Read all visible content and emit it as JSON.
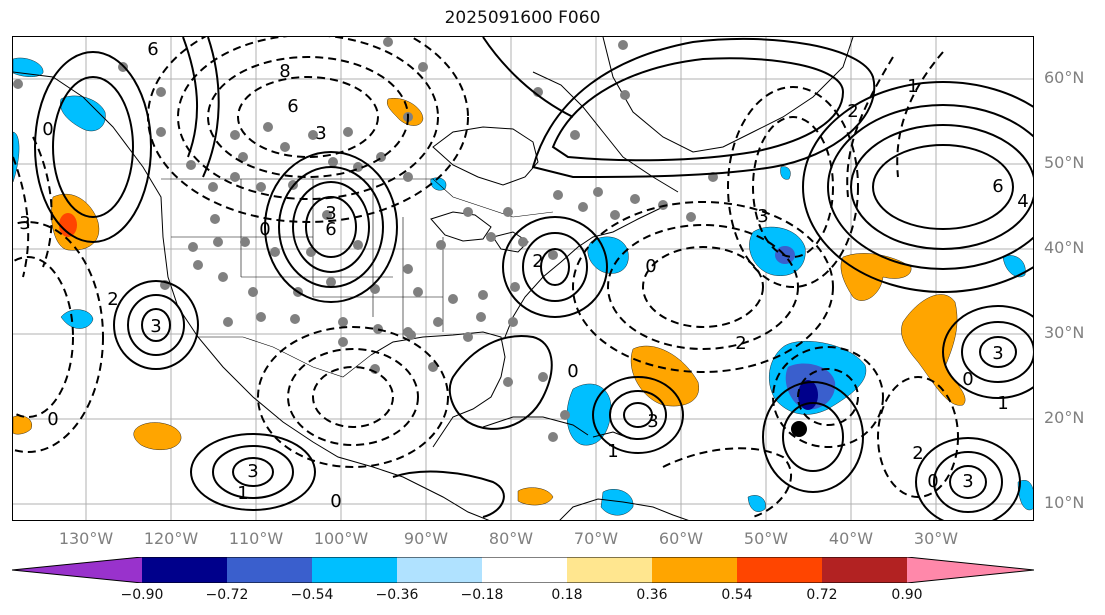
{
  "title": "2025091600 F060",
  "lat_labels": [
    "60°N",
    "50°N",
    "40°N",
    "30°N",
    "20°N",
    "10°N"
  ],
  "lon_labels": [
    "130°W",
    "120°W",
    "110°W",
    "100°W",
    "90°W",
    "80°W",
    "70°W",
    "60°W",
    "50°W",
    "40°W",
    "30°W"
  ],
  "colorbar": {
    "colors": [
      "#9932cc",
      "#00008b",
      "#3a5fcd",
      "#00bfff",
      "#b0e2ff",
      "#ffffff",
      "#ffe68f",
      "#ffa500",
      "#ff4500",
      "#b22222",
      "#ff88aa"
    ],
    "ticks": [
      "−0.90",
      "−0.72",
      "−0.54",
      "−0.36",
      "−0.18",
      "0.18",
      "0.36",
      "0.54",
      "0.72",
      "0.90"
    ]
  },
  "contour_labels": [
    "6",
    "8",
    "6",
    "3",
    "3",
    "6",
    "0",
    "0",
    "3",
    "3",
    "2",
    "2",
    "0",
    "3",
    "6",
    "4",
    "1",
    "2",
    "2",
    "3",
    "0",
    "3",
    "1",
    "2",
    "3",
    "0",
    "0",
    "1",
    "3",
    "1",
    "0",
    "0"
  ]
}
